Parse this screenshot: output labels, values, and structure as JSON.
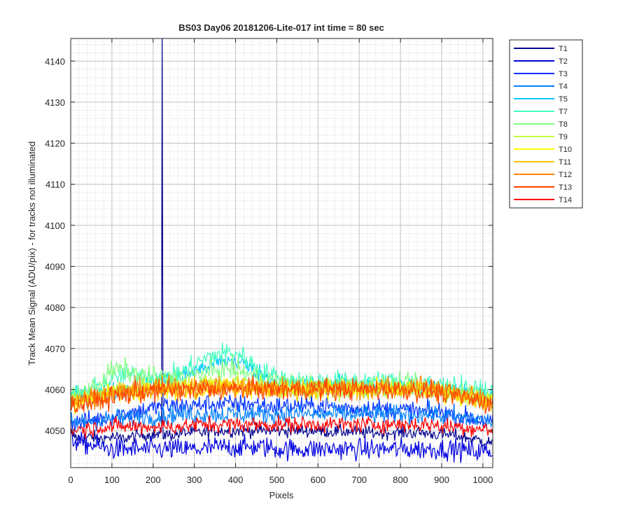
{
  "chart_data": {
    "type": "line",
    "title": "BS03 Day06 20181206-Lite-017 int time = 80 sec",
    "xlabel": "Pixels",
    "ylabel": "Track Mean Signal (ADU/pix) - for tracks not illuminated",
    "xlim": [
      0,
      1024
    ],
    "ylim": [
      4041,
      4145.5
    ],
    "xticks": [
      0,
      100,
      200,
      300,
      400,
      500,
      600,
      700,
      800,
      900,
      1000
    ],
    "yticks": [
      4050,
      4060,
      4070,
      4080,
      4090,
      4100,
      4110,
      4120,
      4130,
      4140
    ],
    "grid": true,
    "minor_grid": true,
    "legend_position": "outside-top-right",
    "x": [
      0,
      25,
      50,
      75,
      100,
      125,
      150,
      175,
      200,
      225,
      250,
      275,
      300,
      325,
      350,
      375,
      400,
      425,
      450,
      475,
      500,
      525,
      550,
      575,
      600,
      625,
      650,
      675,
      700,
      725,
      750,
      775,
      800,
      825,
      850,
      875,
      900,
      925,
      950,
      975,
      1000,
      1024
    ],
    "series": [
      {
        "name": "T1",
        "color": "#00008f",
        "noise": 0.8,
        "values": [
          4049,
          4048,
          4048.5,
          4048,
          4048.5,
          4048,
          4048.5,
          4049,
          4049,
          4049,
          4049,
          4049.5,
          4049.5,
          4049.5,
          4050,
          4050,
          4050,
          4050,
          4050,
          4050,
          4050,
          4050,
          4050,
          4050,
          4050,
          4049.8,
          4049.8,
          4049.8,
          4049.5,
          4049.5,
          4049.5,
          4049.5,
          4049.5,
          4049.5,
          4049.5,
          4049.3,
          4049,
          4049,
          4048.5,
          4048,
          4047.5,
          4047
        ],
        "spike": {
          "x": 222,
          "y": 4145.5
        }
      },
      {
        "name": "T2",
        "color": "#0000e0",
        "noise": 1.3,
        "values": [
          4048,
          4047,
          4046.5,
          4046,
          4045.5,
          4045.5,
          4045.5,
          4045.5,
          4045.5,
          4045.5,
          4045.5,
          4045.5,
          4045.5,
          4045.5,
          4046,
          4046,
          4046,
          4046,
          4046,
          4046,
          4045.5,
          4045.5,
          4045.5,
          4045.5,
          4045.5,
          4045.5,
          4045.5,
          4045.5,
          4045.5,
          4045.5,
          4045.5,
          4045.5,
          4045.5,
          4045.5,
          4045.5,
          4045.5,
          4045.5,
          4045.5,
          4045.3,
          4045,
          4045,
          4045
        ]
      },
      {
        "name": "T3",
        "color": "#0030ff",
        "noise": 1.2,
        "values": [
          4052,
          4052,
          4052.5,
          4053,
          4053.5,
          4054,
          4054.5,
          4055,
          4055.5,
          4056,
          4056,
          4056,
          4056,
          4056.5,
          4056.5,
          4056.5,
          4056.5,
          4056.5,
          4056.5,
          4056,
          4056,
          4056,
          4056,
          4056,
          4056,
          4056,
          4055.5,
          4055.5,
          4055.5,
          4055.5,
          4055.5,
          4055,
          4055,
          4055,
          4054.5,
          4054.5,
          4054.5,
          4054,
          4053.5,
          4053,
          4052.5,
          4052
        ]
      },
      {
        "name": "T4",
        "color": "#0080ff",
        "noise": 1.2,
        "values": [
          4052,
          4052,
          4052.5,
          4052.5,
          4053,
          4053,
          4053,
          4053.5,
          4053.5,
          4053.5,
          4054,
          4054,
          4054,
          4054,
          4054,
          4054,
          4054,
          4054,
          4054,
          4054,
          4054,
          4054,
          4054,
          4054,
          4054,
          4054,
          4054,
          4054,
          4054,
          4054,
          4054,
          4054,
          4054,
          4054,
          4054,
          4054,
          4053.5,
          4053.5,
          4053,
          4053,
          4052.5,
          4052
        ]
      },
      {
        "name": "T5",
        "color": "#00c8ff",
        "noise": 1.1,
        "values": [
          4058,
          4058,
          4058.5,
          4059,
          4059.5,
          4060,
          4060.5,
          4061,
          4061.5,
          4062,
          4062.5,
          4063.5,
          4064.5,
          4065.5,
          4066.5,
          4067,
          4067,
          4066,
          4064.5,
          4063,
          4062,
          4061.5,
          4061,
          4061,
          4061,
          4061,
          4061,
          4061,
          4061,
          4061,
          4061,
          4060.5,
          4060.5,
          4060.5,
          4060.5,
          4060.5,
          4060,
          4060,
          4059.5,
          4059,
          4058.5,
          4058
        ]
      },
      {
        "name": "T7",
        "color": "#40ffc0",
        "noise": 1.3,
        "values": [
          4059,
          4059,
          4060,
          4061,
          4062.5,
          4063.5,
          4063.5,
          4063.5,
          4063,
          4063,
          4063.5,
          4064.5,
          4066,
          4067.5,
          4068.5,
          4069,
          4069,
          4067.5,
          4065.5,
          4064,
          4063,
          4062.5,
          4062,
          4062,
          4062,
          4062,
          4062,
          4062,
          4062,
          4062,
          4062,
          4062,
          4061.5,
          4061.5,
          4061.5,
          4061.5,
          4061,
          4061,
          4060.5,
          4060,
          4059.5,
          4059
        ]
      },
      {
        "name": "T8",
        "color": "#80ff80",
        "noise": 1.3,
        "values": [
          4058.5,
          4059,
          4060,
          4062,
          4064.5,
          4065,
          4064,
          4063.5,
          4063,
          4062.5,
          4062.5,
          4063,
          4063.5,
          4064,
          4064.5,
          4065,
          4065,
          4064,
          4063,
          4062.5,
          4062,
          4061.5,
          4061,
          4061,
          4061,
          4061,
          4061,
          4061,
          4061,
          4061,
          4061,
          4061,
          4061,
          4061,
          4061,
          4060.5,
          4060.5,
          4060,
          4059.5,
          4059,
          4058.5,
          4058
        ]
      },
      {
        "name": "T9",
        "color": "#c0ff40",
        "noise": 1.2,
        "values": [
          4057,
          4057.5,
          4058,
          4059,
          4060,
          4060.5,
          4060.5,
          4060.5,
          4060.5,
          4060.5,
          4060.5,
          4061,
          4061,
          4061.5,
          4061.5,
          4062,
          4062,
          4061.5,
          4061,
          4060.5,
          4060.5,
          4060,
          4060,
          4060,
          4060,
          4060,
          4060,
          4060,
          4060,
          4060,
          4060,
          4060,
          4060,
          4060,
          4060,
          4059.5,
          4059.5,
          4059,
          4058.5,
          4058,
          4057.5,
          4057
        ]
      },
      {
        "name": "T10",
        "color": "#ffff00",
        "noise": 1.2,
        "values": [
          4057,
          4057.5,
          4058,
          4058.5,
          4059,
          4059.5,
          4059.5,
          4060,
          4060,
          4060,
          4060,
          4060.5,
          4060.5,
          4060.5,
          4060.5,
          4061,
          4061,
          4060.5,
          4060.5,
          4060,
          4060,
          4060,
          4060,
          4060,
          4060,
          4060,
          4060,
          4060,
          4060,
          4060,
          4060,
          4060,
          4060,
          4060,
          4060,
          4059.5,
          4059.5,
          4059,
          4058.5,
          4058,
          4057.5,
          4057
        ]
      },
      {
        "name": "T11",
        "color": "#ffc000",
        "noise": 1.2,
        "values": [
          4057,
          4057.5,
          4058,
          4058.5,
          4059,
          4059.5,
          4059.5,
          4060,
          4060,
          4060,
          4060,
          4060.5,
          4060.5,
          4060.5,
          4060.5,
          4060.5,
          4060.5,
          4060.5,
          4060.5,
          4060,
          4060,
          4060,
          4060,
          4060,
          4060,
          4060,
          4060,
          4060,
          4060,
          4060,
          4060,
          4060,
          4060,
          4060,
          4060,
          4059.5,
          4059.5,
          4059,
          4058.5,
          4058,
          4057.5,
          4057
        ]
      },
      {
        "name": "T12",
        "color": "#ff8000",
        "noise": 1.3,
        "values": [
          4057,
          4057.5,
          4058,
          4058.5,
          4059,
          4059.5,
          4060,
          4060,
          4060,
          4060.5,
          4060.5,
          4060.5,
          4060.5,
          4060.5,
          4060.5,
          4060.5,
          4060.5,
          4060.5,
          4060.5,
          4060.5,
          4060.5,
          4060.5,
          4060.5,
          4060.5,
          4060.5,
          4060.5,
          4060.5,
          4060.5,
          4060.5,
          4060.5,
          4060.5,
          4060.5,
          4060.5,
          4060.5,
          4060.5,
          4060,
          4060,
          4059.5,
          4059,
          4058.5,
          4058,
          4057.5
        ]
      },
      {
        "name": "T13",
        "color": "#ff4000",
        "noise": 1.3,
        "values": [
          4056,
          4056.5,
          4057,
          4057.5,
          4058,
          4058.5,
          4059,
          4059.5,
          4059.5,
          4060,
          4060,
          4060,
          4060,
          4060,
          4060,
          4060,
          4060,
          4060,
          4060,
          4060,
          4060,
          4060,
          4060,
          4060,
          4060,
          4060,
          4060,
          4060,
          4060,
          4060,
          4060,
          4060,
          4060,
          4060,
          4059.5,
          4059.5,
          4059,
          4058.5,
          4058,
          4057.5,
          4057,
          4056.5
        ]
      },
      {
        "name": "T14",
        "color": "#ff0000",
        "noise": 1.0,
        "values": [
          4050,
          4050.5,
          4050.5,
          4051,
          4051,
          4051,
          4051,
          4051,
          4051,
          4051,
          4051,
          4051,
          4051.5,
          4051.5,
          4051.5,
          4051.5,
          4051.5,
          4051.5,
          4051.5,
          4051.5,
          4051.5,
          4051.5,
          4051.5,
          4051.5,
          4051.5,
          4051.5,
          4051.5,
          4051.5,
          4051.5,
          4051.5,
          4051.5,
          4051.5,
          4051.5,
          4051.5,
          4051.5,
          4051.5,
          4051,
          4051,
          4051,
          4050.5,
          4050.5,
          4050
        ]
      }
    ]
  }
}
